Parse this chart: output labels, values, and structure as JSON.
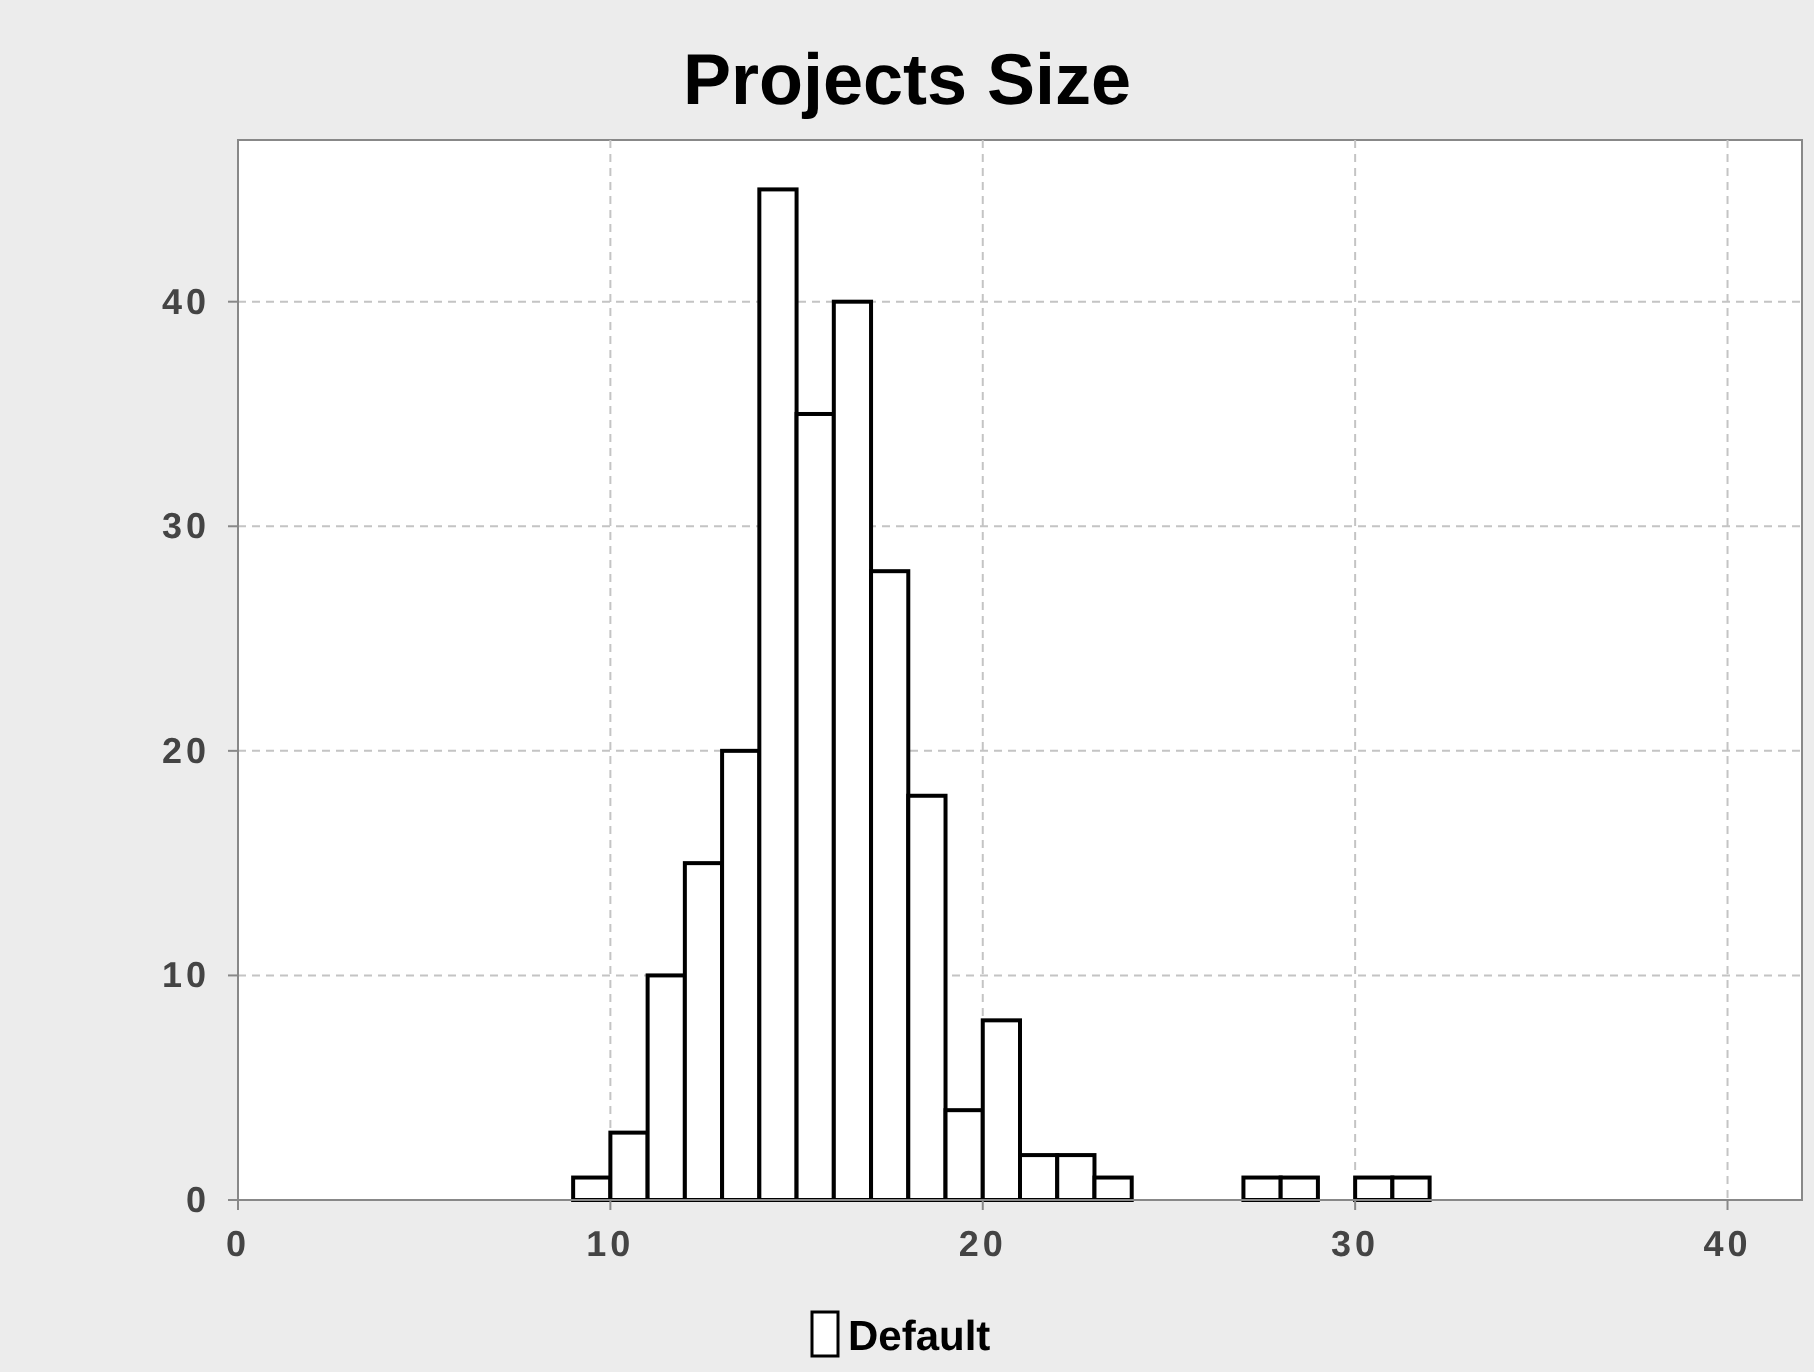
{
  "chart_data": {
    "type": "histogram",
    "title": "Projects Size",
    "bins": [
      9,
      10,
      11,
      12,
      13,
      14,
      15,
      16,
      17,
      18,
      19,
      20,
      21,
      22,
      23,
      24,
      25,
      26,
      27,
      28,
      29,
      30,
      31,
      32
    ],
    "series": [
      {
        "name": "Default",
        "color": "#ffffff",
        "values": [
          1,
          3,
          10,
          15,
          20,
          45,
          35,
          40,
          28,
          18,
          4,
          8,
          2,
          2,
          1,
          0,
          0,
          0,
          1,
          1,
          0,
          1,
          1
        ]
      }
    ],
    "xlim": [
      0,
      42
    ],
    "xticks": [
      0,
      10,
      20,
      30,
      40
    ],
    "ylim": [
      0,
      47.2
    ],
    "yticks": [
      0,
      10,
      20,
      30,
      40
    ],
    "grid": true,
    "legend": "bottom"
  }
}
